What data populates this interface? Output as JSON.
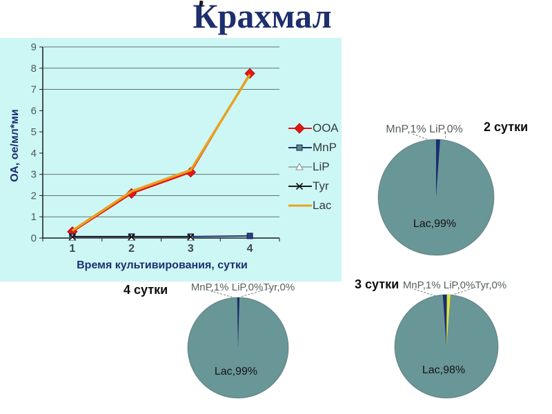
{
  "slide": {
    "title": "Крахмал"
  },
  "colors": {
    "title_navy": "#1d2f6e",
    "panel_bg": "#cdf7f5",
    "grid": "#5f7272",
    "axis": "#1a1a1a",
    "tick_text": "#4b565e",
    "ooa_red": "#e81613",
    "lac_orange": "#e8a21e",
    "mnp_navy": "#1e3374",
    "tyr_black": "#1a1a1a",
    "lip_gray": "#9fb0b0",
    "pie_teal": "#699697",
    "pie_navy": "#182e6d",
    "pie_yellow": "#dfe43c",
    "pie_label_gray": "#575f5f"
  },
  "chart_data": [
    {
      "type": "line",
      "title": "",
      "x": [
        1,
        2,
        3,
        4
      ],
      "xlabel": "Время культивирования, сутки",
      "ylabel": "ОА, ое/мл*ми",
      "ylim": [
        0,
        9
      ],
      "yticks": [
        0,
        1,
        2,
        3,
        4,
        5,
        6,
        7,
        8,
        9
      ],
      "gridlines_at": [
        1,
        2,
        3,
        7,
        8,
        9
      ],
      "legend_position": "right",
      "series": [
        {
          "name": "ООА",
          "values": [
            0.3,
            2.1,
            3.1,
            7.75
          ],
          "color": "#e81613",
          "marker": "diamond",
          "width": 2.5
        },
        {
          "name": "MnP",
          "values": [
            0.07,
            0.07,
            0.07,
            0.1
          ],
          "color": "#1e3374",
          "marker": "square",
          "marker_fill": "#2b3f7e",
          "legend_fill": "#5e8c8c",
          "width": 2
        },
        {
          "name": "LiP",
          "values": [
            0.02,
            0.02,
            0.02
          ],
          "color": "#9fb0b0",
          "marker": "triangle-white",
          "width": 1.5
        },
        {
          "name": "Tyr",
          "values": [
            0.05,
            0.05,
            0.05
          ],
          "color": "#1a1a1a",
          "marker": "x",
          "width": 2
        },
        {
          "name": "Lac",
          "values": [
            0.35,
            2.2,
            3.2,
            7.7
          ],
          "color": "#e8a21e",
          "marker": "none",
          "width": 3.5
        }
      ]
    },
    {
      "type": "pie",
      "title": "2 сутки",
      "top_label": "MnP,1% LiP,0%",
      "inner_label": "Lac,99%",
      "base_color": "#699697",
      "slices": [
        {
          "name": "MnP",
          "pct": 1,
          "color": "#182e6d",
          "start_deg": 0,
          "end_deg": 4
        },
        {
          "name": "LiP",
          "pct": 0,
          "color": "#ffffff",
          "start_deg": 4,
          "end_deg": 4
        },
        {
          "name": "Lac",
          "pct": 99,
          "color": "#699697",
          "start_deg": 4,
          "end_deg": 360
        }
      ]
    },
    {
      "type": "pie",
      "title": "3 сутки",
      "top_label": "MnP,1% LiP,0%Tyr,0%",
      "inner_label": "Lac,98%",
      "base_color": "#699697",
      "slices": [
        {
          "name": "MnP",
          "pct": 1,
          "color": "#182e6d",
          "start_deg": -4,
          "end_deg": 0.5
        },
        {
          "name": "LiP",
          "pct": 0,
          "color": "#ffffff",
          "start_deg": 0.5,
          "end_deg": 0.5
        },
        {
          "name": "Tyr",
          "pct": 0,
          "color": "#dfe43c",
          "start_deg": 0.5,
          "end_deg": 4.5
        },
        {
          "name": "Lac",
          "pct": 98,
          "color": "#699697",
          "start_deg": 4.5,
          "end_deg": 356
        }
      ]
    },
    {
      "type": "pie",
      "title": "4 сутки",
      "top_label": "MnP,1% LiP,0%Tyr,0%",
      "inner_label": "Lac,99%",
      "base_color": "#699697",
      "slices": [
        {
          "name": "MnP",
          "pct": 1,
          "color": "#182e6d",
          "start_deg": -1,
          "end_deg": 1.6
        },
        {
          "name": "LiP",
          "pct": 0,
          "color": "#ffffff",
          "start_deg": 1.6,
          "end_deg": 1.6
        },
        {
          "name": "Tyr",
          "pct": 0,
          "color": "#dfe43c",
          "start_deg": 1.6,
          "end_deg": 1.6
        },
        {
          "name": "Lac",
          "pct": 99,
          "color": "#699697",
          "start_deg": 1.6,
          "end_deg": 359
        }
      ]
    }
  ]
}
